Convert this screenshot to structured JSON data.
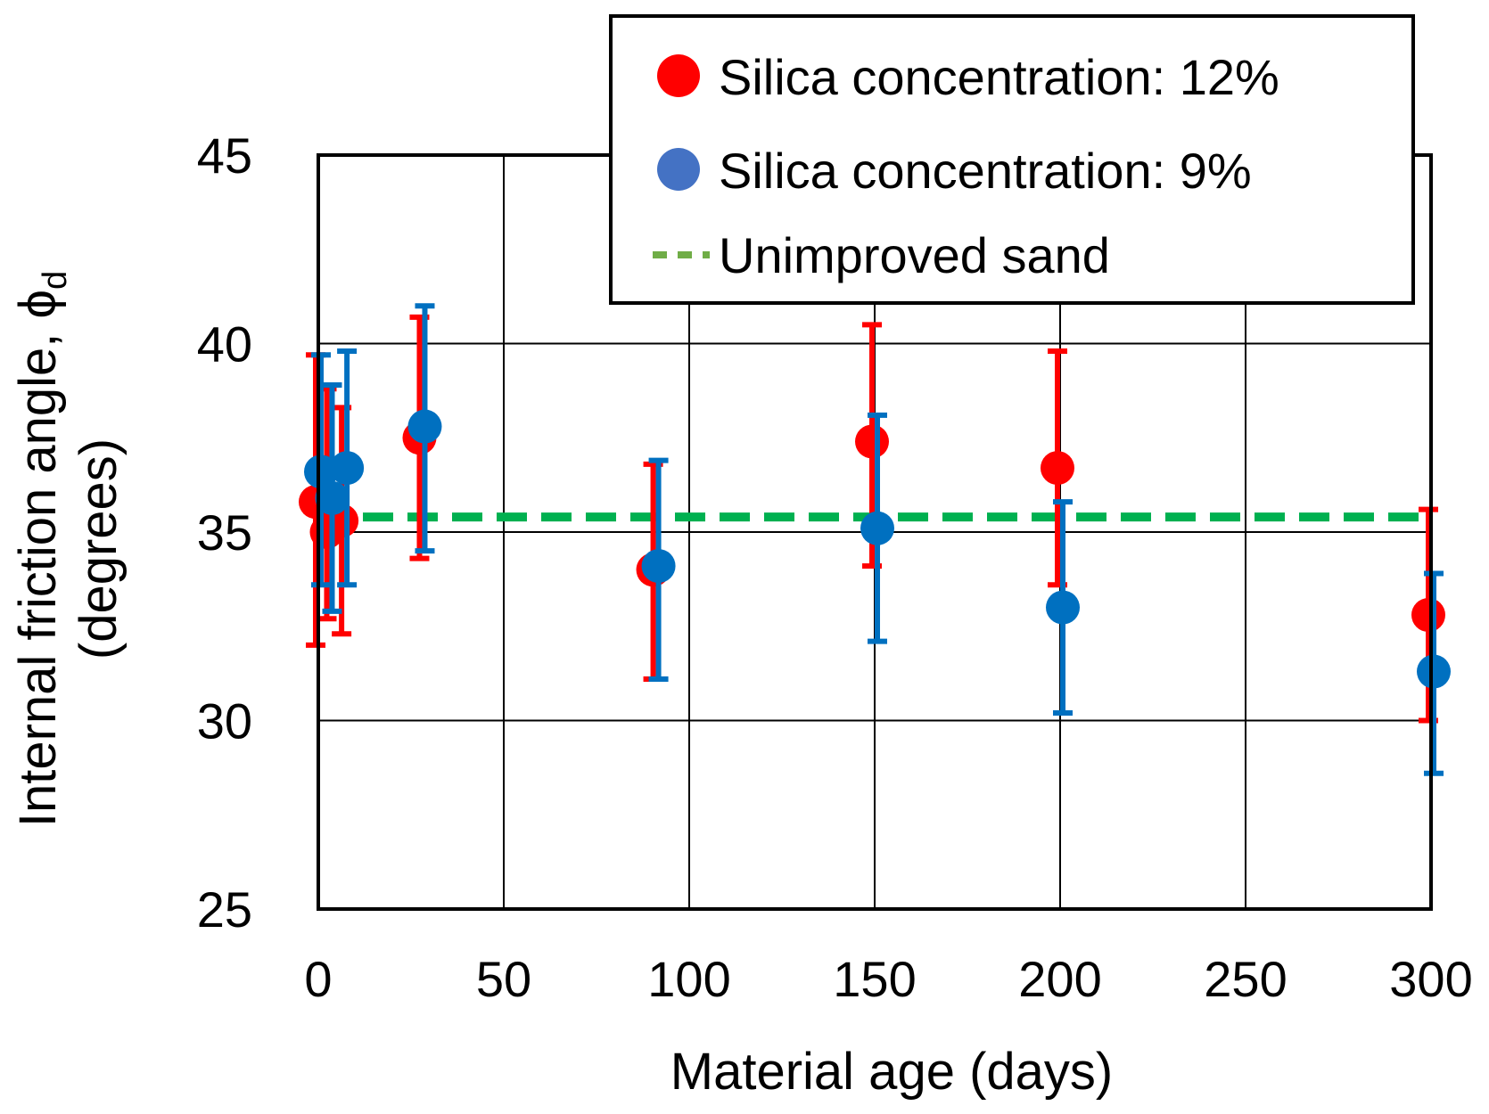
{
  "chart_data": {
    "type": "scatter",
    "xlabel": "Material age (days)",
    "ylabel_main": "Internal friction angle, ",
    "ylabel_symbol": "ϕ",
    "ylabel_subscript": "d",
    "ylabel_line2": "(degrees)",
    "xlim": [
      0,
      300
    ],
    "ylim": [
      25,
      45
    ],
    "xticks": [
      0,
      50,
      100,
      150,
      200,
      250,
      300
    ],
    "yticks": [
      25,
      30,
      35,
      40,
      45
    ],
    "xtick_labels": [
      "0",
      "50",
      "100",
      "150",
      "200",
      "250",
      "300"
    ],
    "ytick_labels": [
      "25",
      "30",
      "35",
      "40",
      "45"
    ],
    "grid": true,
    "legend_position": "top-right",
    "series": [
      {
        "name": "Silica concentration: 12%",
        "color": "#ff0000",
        "points": [
          {
            "x": 0,
            "y": 35.8,
            "ylow": 32.0,
            "yhigh": 39.7
          },
          {
            "x": 3,
            "y": 35.0,
            "ylow": 32.7,
            "yhigh": 38.8
          },
          {
            "x": 7,
            "y": 35.3,
            "ylow": 32.3,
            "yhigh": 38.3
          },
          {
            "x": 28,
            "y": 37.5,
            "ylow": 34.3,
            "yhigh": 40.7
          },
          {
            "x": 91,
            "y": 34.0,
            "ylow": 31.1,
            "yhigh": 36.8
          },
          {
            "x": 150,
            "y": 37.4,
            "ylow": 34.1,
            "yhigh": 40.5
          },
          {
            "x": 200,
            "y": 36.7,
            "ylow": 33.6,
            "yhigh": 39.8
          },
          {
            "x": 300,
            "y": 32.8,
            "ylow": 30.0,
            "yhigh": 35.6
          }
        ]
      },
      {
        "name": "Silica concentration: 9%",
        "color": "#0070c0",
        "points": [
          {
            "x": 0,
            "y": 36.6,
            "ylow": 33.6,
            "yhigh": 39.7
          },
          {
            "x": 3,
            "y": 35.9,
            "ylow": 32.9,
            "yhigh": 38.9
          },
          {
            "x": 7,
            "y": 36.7,
            "ylow": 33.6,
            "yhigh": 39.8
          },
          {
            "x": 28,
            "y": 37.8,
            "ylow": 34.5,
            "yhigh": 41.0
          },
          {
            "x": 91,
            "y": 34.1,
            "ylow": 31.1,
            "yhigh": 36.9
          },
          {
            "x": 150,
            "y": 35.1,
            "ylow": 32.1,
            "yhigh": 38.1
          },
          {
            "x": 200,
            "y": 33.0,
            "ylow": 30.2,
            "yhigh": 35.8
          },
          {
            "x": 300,
            "y": 31.3,
            "ylow": 28.6,
            "yhigh": 33.9
          }
        ]
      }
    ],
    "reference_line": {
      "name": "Unimproved sand",
      "y": 35.4,
      "color": "#00b050",
      "style": "dashed"
    },
    "legend": {
      "entries": [
        {
          "label": "Silica concentration: 12%",
          "marker": "circle",
          "color": "#ff0000"
        },
        {
          "label": "Silica concentration: 9%",
          "marker": "circle",
          "color": "#4472c4"
        },
        {
          "label": "Unimproved sand",
          "marker": "dash",
          "color": "#70ad47"
        }
      ]
    }
  }
}
